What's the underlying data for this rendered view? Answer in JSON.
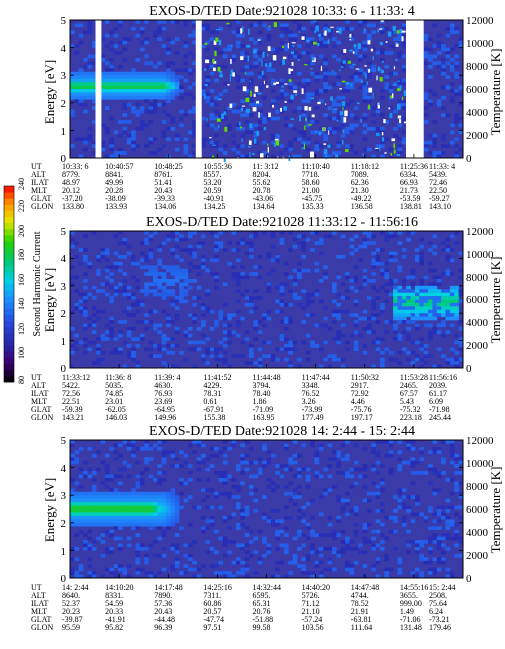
{
  "panels": [
    {
      "title": "EXOS-D/TED   Date:921028  10:33: 6 - 11:33: 4",
      "ylabel_left": "Energy [eV]",
      "ylabel_right": "Temperature [K]",
      "orbit_rows": {
        "labels": [
          "UT",
          "ALT",
          "ILAT",
          "MLT",
          "GLAT",
          "GLON"
        ],
        "columns": [
          [
            "10:33: 6",
            "8779.",
            "48.97",
            "20.12",
            "-37.20",
            "133.80"
          ],
          [
            "10:40:57",
            "8841.",
            "49.99",
            "20.28",
            "-38.09",
            "133.93"
          ],
          [
            "10:48:25",
            "8761.",
            "51.41",
            "20.43",
            "-39.33",
            "134.06"
          ],
          [
            "10:55:36",
            "8557.",
            "53.20",
            "20.59",
            "-40.91",
            "134.25"
          ],
          [
            "11: 3:12",
            "8204.",
            "55.62",
            "20.78",
            "-43.06",
            "134.64"
          ],
          [
            "11:10:40",
            "7718.",
            "58.60",
            "21.00",
            "-45.75",
            "135.33"
          ],
          [
            "11:18:12",
            "7089.",
            "62.36",
            "21.30",
            "-49.22",
            "136.58"
          ],
          [
            "11:25:36",
            "6334.",
            "66.93",
            "21.73",
            "-53.59",
            "138.81"
          ],
          [
            "11:33: 4",
            "5439.",
            "72.46",
            "22.50",
            "-59.27",
            "143.10"
          ]
        ]
      },
      "x_ticks": [
        "10:33: 6",
        "10:40:57",
        "10:48:25",
        "10:55:36",
        "11: 3:12",
        "11:10:40",
        "11:18:12",
        "11:25:36",
        "11:33: 4"
      ]
    },
    {
      "title": "EXOS-D/TED   Date:921028  11:33:12 - 11:56:16",
      "ylabel_left": "Energy [eV]",
      "ylabel_right": "Temperature [K]",
      "orbit_rows": {
        "labels": [
          "UT",
          "ALT",
          "ILAT",
          "MLT",
          "GLAT",
          "GLON"
        ],
        "columns": [
          [
            "11:33:12",
            "5422.",
            "72.56",
            "22.51",
            "-59.39",
            "143.21"
          ],
          [
            "11:36: 8",
            "5035.",
            "74.85",
            "23.01",
            "-62.05",
            "146.03"
          ],
          [
            "11:39: 4",
            "4630.",
            "76.93",
            "23.69",
            "-64.95",
            "149.96"
          ],
          [
            "11:41:52",
            "4229.",
            "78.31",
            "0.61",
            "-67.91",
            "155.38"
          ],
          [
            "11:44:48",
            "3794.",
            "78.40",
            "1.86",
            "-71.09",
            "163.95"
          ],
          [
            "11:47:44",
            "3348.",
            "76.52",
            "3.26",
            "-73.99",
            "177.49"
          ],
          [
            "11:50:32",
            "2917.",
            "72.92",
            "4.46",
            "-75.76",
            "197.17"
          ],
          [
            "11:53:28",
            "2465.",
            "67.57",
            "5.43",
            "-75.32",
            "223.18"
          ],
          [
            "11:56:16",
            "2039.",
            "61.17",
            "6.09",
            "-71.98",
            "245.44"
          ]
        ]
      },
      "x_ticks": [
        "11:33:12",
        "11:36: 8",
        "11:39: 4",
        "11:41:52",
        "11:44:48",
        "11:47:44",
        "11:50:32",
        "11:53:28",
        "11:56:16"
      ]
    },
    {
      "title": "EXOS-D/TED   Date:921028  14: 2:44 - 15: 2:44",
      "ylabel_left": "Energy [eV]",
      "ylabel_right": "Temperature [K]",
      "orbit_rows": {
        "labels": [
          "UT",
          "ALT",
          "ILAT",
          "MLT",
          "GLAT",
          "GLON"
        ],
        "columns": [
          [
            "14: 2:44",
            "8640.",
            "52.37",
            "20.23",
            "-39.87",
            "95.59"
          ],
          [
            "14:10:20",
            "8331.",
            "54.59",
            "20.33",
            "-41.91",
            "95.82"
          ],
          [
            "14:17:48",
            "7890.",
            "57.36",
            "20.43",
            "-44.48",
            "96.39"
          ],
          [
            "14:25:16",
            "7311.",
            "60.86",
            "20.57",
            "-47.74",
            "97.51"
          ],
          [
            "14:32:44",
            "6595.",
            "65.31",
            "20.76",
            "-51.88",
            "99.58"
          ],
          [
            "14:40:20",
            "5726.",
            "71.12",
            "21.10",
            "-57.24",
            "103.56"
          ],
          [
            "14:47:48",
            "4744.",
            "78.52",
            "21.91",
            "-63.81",
            "111.64"
          ],
          [
            "14:55:16",
            "3655.",
            "999.00",
            "1.49",
            "-71.06",
            "131.48"
          ],
          [
            "15: 2:44",
            "2508.",
            "75.64",
            "6.24",
            "-73.21",
            "179.46"
          ]
        ]
      },
      "x_ticks": [
        "14: 2:44",
        "14:10:20",
        "14:17:48",
        "14:25:16",
        "14:32:44",
        "14:40:20",
        "14:47:48",
        "14:55:16",
        "15: 2:44"
      ]
    }
  ],
  "colorbar": {
    "label": "Second Harmonic Current",
    "ticks": [
      "80",
      "100",
      "120",
      "140",
      "160",
      "180",
      "200",
      "220",
      "240"
    ]
  },
  "chart_data": [
    {
      "type": "heatmap",
      "title": "EXOS-D/TED   Date:921028  10:33: 6 - 11:33: 4",
      "xlabel": "UT",
      "ylabel": "Energy [eV]",
      "ylabel_right": "Temperature [K]",
      "ylim": [
        0,
        5
      ],
      "ylim_right": [
        0,
        12000
      ],
      "yticks": [
        "0",
        "1",
        "2",
        "3",
        "4",
        "5"
      ],
      "yticks_right": [
        "0",
        "2000",
        "4000",
        "6000",
        "8000",
        "10000",
        "12000"
      ],
      "colorbar_range": [
        80,
        240
      ],
      "background_level": 125,
      "features": [
        {
          "kind": "band",
          "t0": 0.0,
          "t1": 0.28,
          "e_center": 2.6,
          "e_halfwidth": 0.22,
          "level": 190
        },
        {
          "kind": "band",
          "t0": 0.0,
          "t1": 0.28,
          "e_center": 2.6,
          "e_halfwidth": 0.5,
          "level": 160
        },
        {
          "kind": "gap",
          "t0": 0.065,
          "t1": 0.08
        },
        {
          "kind": "gap",
          "t0": 0.32,
          "t1": 0.335
        },
        {
          "kind": "gap",
          "t0": 0.855,
          "t1": 0.9
        },
        {
          "kind": "noise",
          "t0": 0.34,
          "t1": 0.85,
          "level": 240
        }
      ]
    },
    {
      "type": "heatmap",
      "title": "EXOS-D/TED   Date:921028  11:33:12 - 11:56:16",
      "xlabel": "UT",
      "ylabel": "Energy [eV]",
      "ylabel_right": "Temperature [K]",
      "ylim": [
        0,
        5
      ],
      "ylim_right": [
        0,
        12000
      ],
      "yticks": [
        "0",
        "1",
        "2",
        "3",
        "4",
        "5"
      ],
      "yticks_right": [
        "0",
        "2000",
        "4000",
        "6000",
        "8000",
        "10000",
        "12000"
      ],
      "colorbar_range": [
        80,
        240
      ],
      "background_level": 125,
      "features": [
        {
          "kind": "blob",
          "t0": 0.82,
          "t1": 0.99,
          "e_center": 2.4,
          "e_halfwidth": 0.6,
          "level": 180
        },
        {
          "kind": "blob",
          "t0": 0.18,
          "t1": 0.3,
          "e_center": 3.2,
          "e_halfwidth": 0.7,
          "level": 140
        }
      ]
    },
    {
      "type": "heatmap",
      "title": "EXOS-D/TED   Date:921028  14: 2:44 - 15: 2:44",
      "xlabel": "UT",
      "ylabel": "Energy [eV]",
      "ylabel_right": "Temperature [K]",
      "ylim": [
        0,
        5
      ],
      "ylim_right": [
        0,
        12000
      ],
      "yticks": [
        "0",
        "1",
        "2",
        "3",
        "4",
        "5"
      ],
      "yticks_right": [
        "0",
        "2000",
        "4000",
        "6000",
        "8000",
        "10000",
        "12000"
      ],
      "colorbar_range": [
        80,
        240
      ],
      "background_level": 125,
      "features": [
        {
          "kind": "band",
          "t0": 0.0,
          "t1": 0.25,
          "e_center": 2.5,
          "e_halfwidth": 0.3,
          "level": 195
        },
        {
          "kind": "band",
          "t0": 0.0,
          "t1": 0.28,
          "e_center": 2.5,
          "e_halfwidth": 0.6,
          "level": 160
        }
      ]
    }
  ]
}
